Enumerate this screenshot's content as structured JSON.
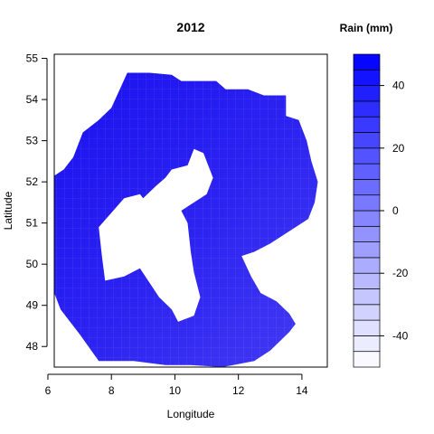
{
  "chart_data": {
    "type": "heatmap",
    "title": "2012",
    "xlabel": "Longitude",
    "ylabel": "Latitude",
    "xlim": [
      6.2,
      14.8
    ],
    "ylim": [
      47.5,
      55.1
    ],
    "xticks": [
      6,
      8,
      10,
      12,
      14
    ],
    "yticks": [
      48,
      49,
      50,
      51,
      52,
      53,
      54,
      55
    ],
    "legend": {
      "title": "Rain (mm)",
      "position": "right",
      "range": [
        -50,
        50
      ],
      "step": 5,
      "ticks": [
        -40,
        -20,
        0,
        20,
        40
      ],
      "color_low": "#ffffff",
      "color_high": "#0000ff"
    },
    "fill_color": "#1a10f0",
    "region": {
      "outer_boundary_lon_lat": [
        [
          8.5,
          54.65
        ],
        [
          9.2,
          54.65
        ],
        [
          9.9,
          54.6
        ],
        [
          10.2,
          54.45
        ],
        [
          11.3,
          54.45
        ],
        [
          11.6,
          54.25
        ],
        [
          12.3,
          54.25
        ],
        [
          12.8,
          54.1
        ],
        [
          13.5,
          54.1
        ],
        [
          13.5,
          53.6
        ],
        [
          13.9,
          53.5
        ],
        [
          14.15,
          53.0
        ],
        [
          14.3,
          52.5
        ],
        [
          14.5,
          52.0
        ],
        [
          14.4,
          51.5
        ],
        [
          14.2,
          51.1
        ],
        [
          13.6,
          50.8
        ],
        [
          13.0,
          50.5
        ],
        [
          12.5,
          50.3
        ],
        [
          12.1,
          50.2
        ],
        [
          12.4,
          49.7
        ],
        [
          12.7,
          49.3
        ],
        [
          13.2,
          49.1
        ],
        [
          13.6,
          48.8
        ],
        [
          13.8,
          48.55
        ],
        [
          13.6,
          48.35
        ],
        [
          13.0,
          47.9
        ],
        [
          12.5,
          47.65
        ],
        [
          11.5,
          47.5
        ],
        [
          10.5,
          47.55
        ],
        [
          9.7,
          47.55
        ],
        [
          8.7,
          47.65
        ],
        [
          7.6,
          47.65
        ],
        [
          7.0,
          48.3
        ],
        [
          6.4,
          48.9
        ],
        [
          6.1,
          49.5
        ],
        [
          6.1,
          50.1
        ],
        [
          5.9,
          50.7
        ],
        [
          5.9,
          51.8
        ],
        [
          6.1,
          52.1
        ],
        [
          6.5,
          52.3
        ],
        [
          6.8,
          52.6
        ],
        [
          7.1,
          53.2
        ],
        [
          7.6,
          53.5
        ],
        [
          8.0,
          53.8
        ]
      ],
      "hole_lon_lat": [
        [
          7.8,
          49.6
        ],
        [
          7.7,
          50.2
        ],
        [
          7.6,
          50.9
        ],
        [
          8.4,
          51.6
        ],
        [
          8.9,
          51.7
        ],
        [
          9.0,
          51.6
        ],
        [
          9.4,
          51.9
        ],
        [
          9.7,
          52.1
        ],
        [
          9.9,
          52.3
        ],
        [
          10.4,
          52.4
        ],
        [
          10.6,
          52.8
        ],
        [
          10.9,
          52.7
        ],
        [
          11.2,
          52.1
        ],
        [
          11.0,
          51.7
        ],
        [
          10.7,
          51.55
        ],
        [
          10.2,
          51.3
        ],
        [
          10.4,
          51.0
        ],
        [
          10.5,
          50.3
        ],
        [
          10.6,
          49.8
        ],
        [
          10.8,
          49.2
        ],
        [
          10.6,
          48.75
        ],
        [
          10.1,
          48.6
        ],
        [
          9.9,
          48.9
        ],
        [
          9.5,
          49.2
        ],
        [
          8.9,
          49.9
        ],
        [
          8.4,
          49.7
        ]
      ]
    }
  }
}
